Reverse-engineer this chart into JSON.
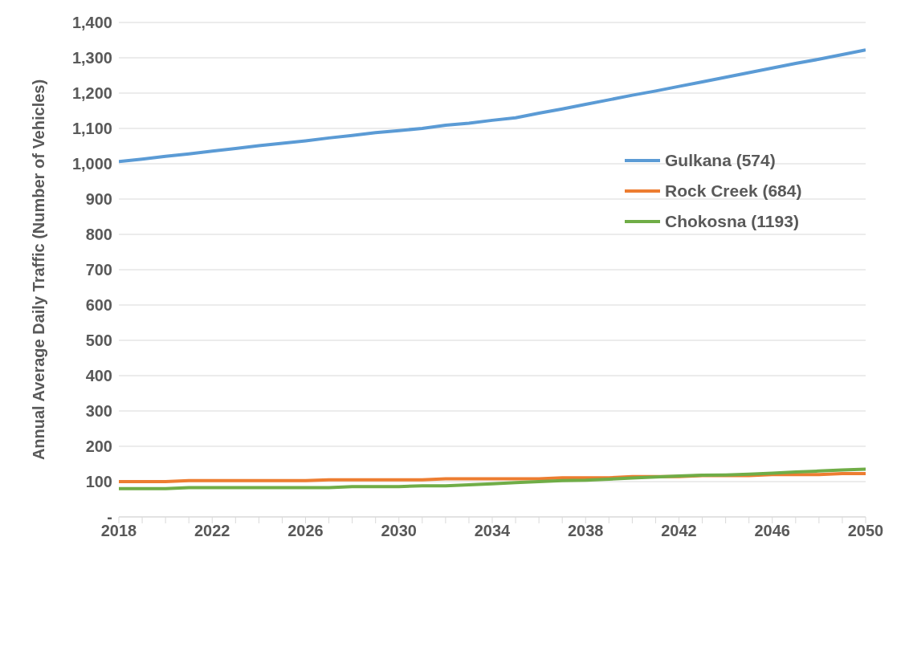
{
  "chart_data": {
    "type": "line",
    "ylabel": "Annual Average Daily Traffic (Number of Vehicles)",
    "x": [
      2018,
      2019,
      2020,
      2021,
      2022,
      2023,
      2024,
      2025,
      2026,
      2027,
      2028,
      2029,
      2030,
      2031,
      2032,
      2033,
      2034,
      2035,
      2036,
      2037,
      2038,
      2039,
      2040,
      2041,
      2042,
      2043,
      2044,
      2045,
      2046,
      2047,
      2048,
      2049,
      2050
    ],
    "series": [
      {
        "name": "Gulkana (574)",
        "color": "#5b9bd5",
        "values": [
          1006,
          1013,
          1021,
          1028,
          1036,
          1043,
          1051,
          1058,
          1065,
          1073,
          1080,
          1088,
          1094,
          1100,
          1109,
          1115,
          1123,
          1130,
          1143,
          1155,
          1168,
          1181,
          1194,
          1206,
          1219,
          1232,
          1245,
          1258,
          1271,
          1284,
          1296,
          1309,
          1322
        ]
      },
      {
        "name": "Rock Creek (684)",
        "color": "#ed7d31",
        "values": [
          100,
          100,
          100,
          103,
          103,
          103,
          103,
          103,
          103,
          105,
          105,
          105,
          105,
          105,
          108,
          108,
          108,
          108,
          108,
          111,
          111,
          111,
          114,
          114,
          114,
          117,
          117,
          117,
          120,
          120,
          120,
          123,
          123
        ]
      },
      {
        "name": "Chokosna (1193)",
        "color": "#70ad47",
        "values": [
          80,
          80,
          80,
          83,
          83,
          83,
          83,
          83,
          83,
          83,
          86,
          86,
          86,
          88,
          88,
          91,
          94,
          97,
          100,
          103,
          104,
          107,
          110,
          113,
          116,
          118,
          119,
          121,
          124,
          127,
          130,
          133,
          135
        ]
      }
    ],
    "xlim": [
      2018,
      2050
    ],
    "xticks": [
      2018,
      {
        "value": 2019,
        "label": null
      },
      {
        "value": 2020,
        "label": null
      },
      {
        "value": 2021,
        "label": null
      },
      2022,
      {
        "value": 2023,
        "label": null
      },
      {
        "value": 2024,
        "label": null
      },
      {
        "value": 2025,
        "label": null
      },
      2026,
      {
        "value": 2027,
        "label": null
      },
      {
        "value": 2028,
        "label": null
      },
      {
        "value": 2029,
        "label": null
      },
      2030,
      {
        "value": 2031,
        "label": null
      },
      {
        "value": 2032,
        "label": null
      },
      {
        "value": 2033,
        "label": null
      },
      2034,
      {
        "value": 2035,
        "label": null
      },
      {
        "value": 2036,
        "label": null
      },
      {
        "value": 2037,
        "label": null
      },
      2038,
      {
        "value": 2039,
        "label": null
      },
      {
        "value": 2040,
        "label": null
      },
      {
        "value": 2041,
        "label": null
      },
      2042,
      {
        "value": 2043,
        "label": null
      },
      {
        "value": 2044,
        "label": null
      },
      {
        "value": 2045,
        "label": null
      },
      2046,
      {
        "value": 2047,
        "label": null
      },
      {
        "value": 2048,
        "label": null
      },
      {
        "value": 2049,
        "label": null
      },
      2050
    ],
    "ylim": [
      0,
      1400
    ],
    "yticks": [
      {
        "value": 0,
        "label": "-"
      },
      100,
      200,
      300,
      400,
      500,
      600,
      700,
      800,
      900,
      {
        "value": 1000,
        "label": "1,000"
      },
      {
        "value": 1100,
        "label": "1,100"
      },
      {
        "value": 1200,
        "label": "1,200"
      },
      {
        "value": 1300,
        "label": "1,300"
      },
      {
        "value": 1400,
        "label": "1,400"
      }
    ],
    "grid": "y",
    "legend": "right",
    "marker": "none",
    "line_style": "solid"
  }
}
